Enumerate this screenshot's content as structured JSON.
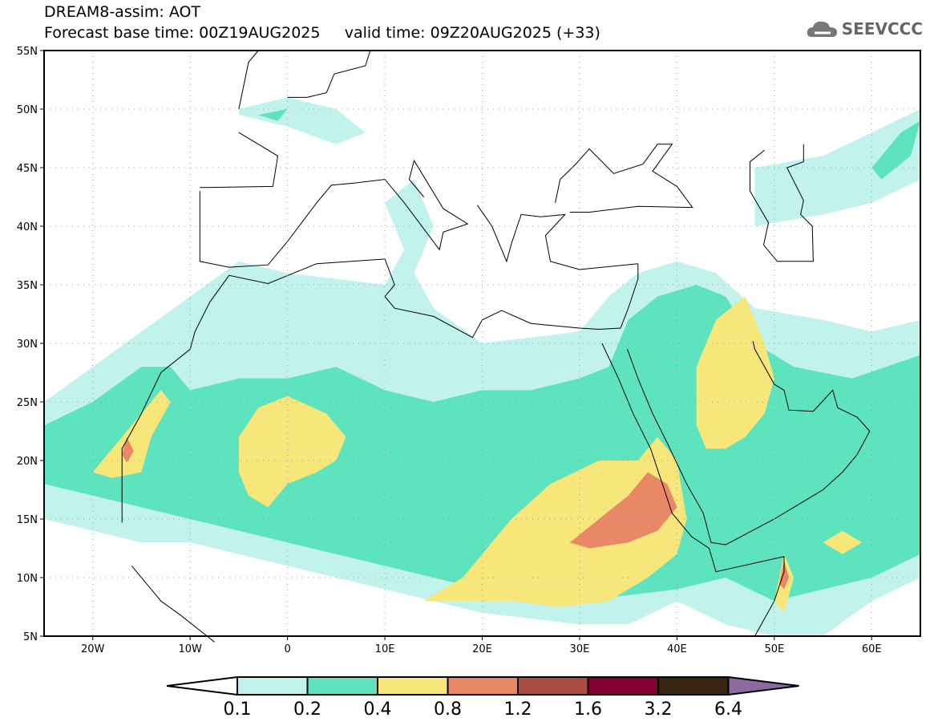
{
  "header": {
    "title": "DREAM8-assim: AOT",
    "base_time_label": "Forecast base time: 00Z19AUG2025",
    "valid_time_label": "valid time: 09Z20AUG2025 (+33)"
  },
  "logo": {
    "text": "SEEVCCC"
  },
  "map": {
    "lat_labels": [
      "55N",
      "50N",
      "45N",
      "40N",
      "35N",
      "30N",
      "25N",
      "20N",
      "15N",
      "10N",
      "5N"
    ],
    "lon_labels": [
      "20W",
      "10W",
      "0",
      "10E",
      "20E",
      "30E",
      "40E",
      "50E",
      "60E"
    ]
  },
  "legend": {
    "labels": [
      "0.1",
      "0.2",
      "0.4",
      "0.8",
      "1.2",
      "1.6",
      "3.2",
      "6.4"
    ],
    "colors": [
      "#ffffff",
      "#c2f2ec",
      "#5de3bd",
      "#f7e67a",
      "#e98866",
      "#aa4c42",
      "#830031",
      "#3a2510",
      "#8b6aa0"
    ]
  }
}
